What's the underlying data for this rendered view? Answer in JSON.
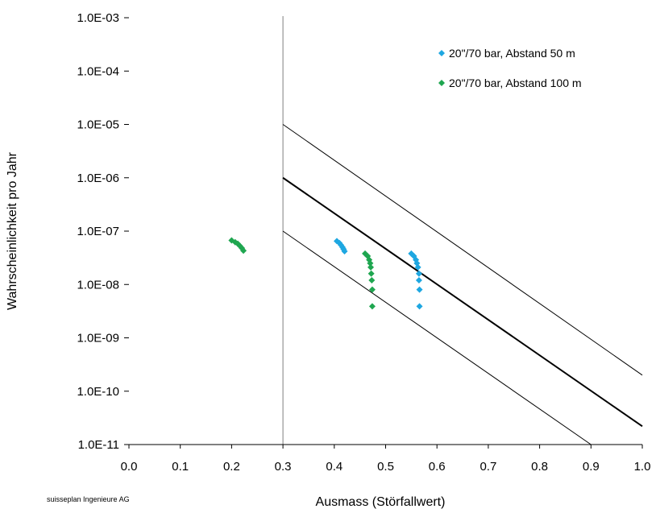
{
  "chart_data": {
    "type": "scatter",
    "xlabel": "Ausmass (Störfallwert)",
    "ylabel": "Wahrscheinlichkeit pro Jahr",
    "footer": "suisseplan Ingenieure AG",
    "xlim": [
      0.0,
      1.0
    ],
    "ylim": [
      1e-11,
      0.001
    ],
    "y_scale": "log",
    "grid": false,
    "legend_position": "top-right",
    "x_ticks": [
      "0.0",
      "0.1",
      "0.2",
      "0.3",
      "0.4",
      "0.5",
      "0.6",
      "0.7",
      "0.8",
      "0.9",
      "1.0"
    ],
    "y_ticks": [
      "1.0E-03",
      "1.0E-04",
      "1.0E-05",
      "1.0E-06",
      "1.0E-07",
      "1.0E-08",
      "1.0E-09",
      "1.0E-10",
      "1.0E-11"
    ],
    "series": [
      {
        "name": "20\"/70 bar, Abstand 50 m",
        "color": "#1ea7e1",
        "marker": "diamond",
        "points": [
          {
            "x": 0.405,
            "y": 6.5e-08
          },
          {
            "x": 0.41,
            "y": 6e-08
          },
          {
            "x": 0.413,
            "y": 5.5e-08
          },
          {
            "x": 0.416,
            "y": 5e-08
          },
          {
            "x": 0.418,
            "y": 4.6e-08
          },
          {
            "x": 0.42,
            "y": 4.2e-08
          },
          {
            "x": 0.55,
            "y": 3.8e-08
          },
          {
            "x": 0.555,
            "y": 3.4e-08
          },
          {
            "x": 0.559,
            "y": 2.9e-08
          },
          {
            "x": 0.561,
            "y": 2.5e-08
          },
          {
            "x": 0.563,
            "y": 2.1e-08
          },
          {
            "x": 0.565,
            "y": 1.6e-08
          },
          {
            "x": 0.565,
            "y": 1.2e-08
          },
          {
            "x": 0.566,
            "y": 8e-09
          },
          {
            "x": 0.566,
            "y": 3.9e-09
          }
        ]
      },
      {
        "name": "20\"/70 bar, Abstand 100 m",
        "color": "#1fa650",
        "marker": "diamond",
        "points": [
          {
            "x": 0.2,
            "y": 6.7e-08
          },
          {
            "x": 0.207,
            "y": 6.2e-08
          },
          {
            "x": 0.212,
            "y": 5.8e-08
          },
          {
            "x": 0.216,
            "y": 5.3e-08
          },
          {
            "x": 0.22,
            "y": 4.8e-08
          },
          {
            "x": 0.223,
            "y": 4.3e-08
          },
          {
            "x": 0.46,
            "y": 3.8e-08
          },
          {
            "x": 0.465,
            "y": 3.4e-08
          },
          {
            "x": 0.468,
            "y": 2.9e-08
          },
          {
            "x": 0.47,
            "y": 2.5e-08
          },
          {
            "x": 0.471,
            "y": 2.1e-08
          },
          {
            "x": 0.472,
            "y": 1.6e-08
          },
          {
            "x": 0.473,
            "y": 1.2e-08
          },
          {
            "x": 0.474,
            "y": 8e-09
          },
          {
            "x": 0.474,
            "y": 3.9e-09
          }
        ]
      }
    ],
    "reference_lines": [
      {
        "kind": "vertical",
        "x": 0.3,
        "color": "#808080",
        "width": 1
      },
      {
        "kind": "segment",
        "from": {
          "x": 0.3,
          "y": 1e-05
        },
        "to": {
          "x": 1.0,
          "y": 2e-10
        },
        "color": "#000000",
        "width": 1
      },
      {
        "kind": "segment",
        "from": {
          "x": 0.3,
          "y": 1e-06
        },
        "to": {
          "x": 1.0,
          "y": 2.2e-11
        },
        "color": "#000000",
        "width": 2
      },
      {
        "kind": "segment",
        "from": {
          "x": 0.3,
          "y": 1e-07
        },
        "to": {
          "x": 0.9,
          "y": 1e-11
        },
        "color": "#000000",
        "width": 1
      }
    ]
  }
}
